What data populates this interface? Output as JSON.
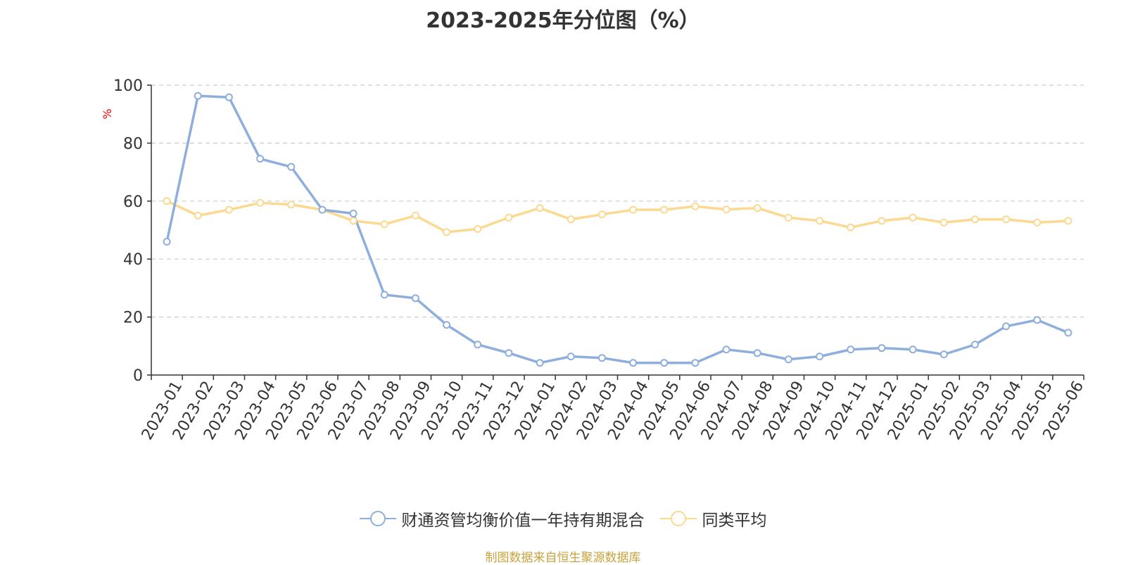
{
  "chart_data": {
    "type": "line",
    "title": "2023-2025年分位图（%）",
    "ylabel": "%",
    "ylim": [
      0,
      100
    ],
    "yticks": [
      0,
      20,
      40,
      60,
      80,
      100
    ],
    "categories": [
      "2023-01",
      "2023-02",
      "2023-03",
      "2023-04",
      "2023-05",
      "2023-06",
      "2023-07",
      "2023-08",
      "2023-09",
      "2023-10",
      "2023-11",
      "2023-12",
      "2024-01",
      "2024-02",
      "2024-03",
      "2024-04",
      "2024-05",
      "2024-06",
      "2024-07",
      "2024-08",
      "2024-09",
      "2024-10",
      "2024-11",
      "2024-12",
      "2025-01",
      "2025-02",
      "2025-03",
      "2025-04",
      "2025-05",
      "2025-06"
    ],
    "series": [
      {
        "name": "财通资管均衡价值一年持有期混合",
        "color": "#8eaedd",
        "values": [
          46,
          96.3,
          95.8,
          74.6,
          71.8,
          57,
          55.7,
          27.7,
          26.5,
          17.3,
          10.5,
          7.6,
          4.2,
          6.4,
          5.9,
          4.2,
          4.2,
          4.2,
          8.8,
          7.6,
          5.4,
          6.4,
          8.8,
          9.3,
          8.8,
          7.1,
          10.5,
          16.8,
          19,
          14.6
        ]
      },
      {
        "name": "同类平均",
        "color": "#fbd991",
        "values": [
          60,
          55,
          57,
          59.4,
          58.8,
          57,
          53.2,
          52,
          55,
          49.3,
          50.4,
          54.3,
          57.6,
          53.7,
          55.4,
          57,
          57,
          58.2,
          57.1,
          57.6,
          54.3,
          53.2,
          50.9,
          53.2,
          54.3,
          52.6,
          53.7,
          53.7,
          52.6,
          53.2
        ]
      }
    ],
    "grid": true,
    "legend_position": "bottom-center"
  },
  "footer": {
    "source": "制图数据来自恒生聚源数据库"
  }
}
